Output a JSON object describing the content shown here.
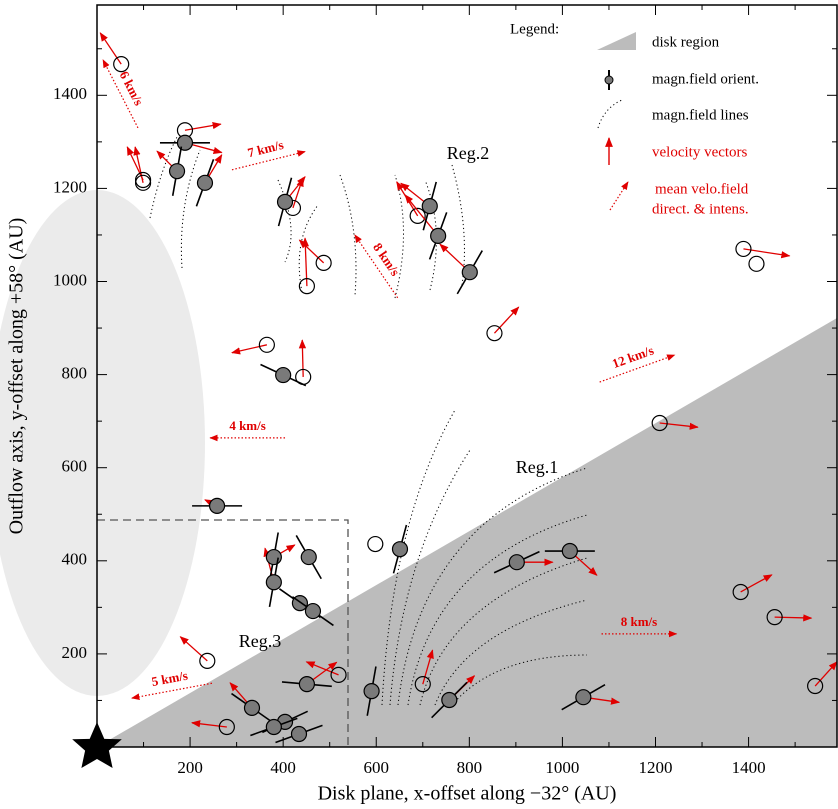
{
  "chart_data": {
    "type": "scatter",
    "xlabel": "Disk plane, x-offset along −32° (AU)",
    "ylabel": "Outflow axis, y-offset along +58° (AU)",
    "xlim": [
      0,
      1590
    ],
    "ylim": [
      0,
      1594
    ],
    "xticks": [
      200,
      400,
      600,
      800,
      1000,
      1200,
      1400
    ],
    "yticks": [
      200,
      400,
      600,
      800,
      1000,
      1200,
      1400
    ],
    "xminor": [
      100,
      300,
      500,
      700,
      900,
      1100,
      1300,
      1500
    ],
    "yminor": [
      100,
      300,
      500,
      700,
      900,
      1100,
      1300,
      1500
    ],
    "vector_color": "#e00000",
    "filled": {
      "x": [
        189,
        172,
        232,
        404,
        715,
        733,
        801,
        400,
        258,
        380,
        455,
        380,
        436,
        464,
        651,
        902,
        1016,
        451,
        333,
        404,
        380,
        434,
        590,
        757,
        1045
      ],
      "y": [
        1298,
        1237,
        1212,
        1171,
        1162,
        1098,
        1020,
        799,
        518,
        408,
        408,
        354,
        309,
        292,
        425,
        397,
        421,
        135,
        84,
        54,
        43,
        28,
        120,
        101,
        107
      ],
      "bfield_angle": [
        0,
        80,
        70,
        75,
        75,
        70,
        60,
        -25,
        0,
        80,
        -60,
        80,
        -35,
        -35,
        75,
        25,
        0,
        -5,
        -35,
        25,
        20,
        20,
        80,
        45,
        30
      ],
      "vx": [
        79,
        -43,
        36,
        43,
        -62,
        -71,
        -64,
        null,
        -26,
        45,
        null,
        -19,
        null,
        null,
        null,
        77,
        58,
        64,
        -47,
        null,
        null,
        null,
        null,
        54,
        77
      ],
      "vy": [
        -21,
        43,
        60,
        54,
        49,
        88,
        60,
        null,
        13,
        26,
        null,
        73,
        null,
        null,
        null,
        0,
        -52,
        47,
        54,
        null,
        null,
        null,
        null,
        52,
        -11
      ]
    },
    "open": {
      "x": [
        52,
        189,
        99,
        99,
        421,
        487,
        451,
        689,
        854,
        365,
        443,
        1389,
        1417,
        1209,
        598,
        237,
        519,
        700,
        279,
        1383,
        1456,
        1543
      ],
      "y": [
        1467,
        1325,
        1218,
        1212,
        1158,
        1040,
        990,
        1141,
        889,
        864,
        795,
        1070,
        1038,
        696,
        436,
        185,
        155,
        135,
        43,
        333,
        279,
        131
      ],
      "vx": [
        -45,
        77,
        -34,
        -17,
        21,
        -52,
        -4,
        -45,
        52,
        -75,
        -2,
        99,
        null,
        82,
        null,
        -58,
        -69,
        21,
        -75,
        67,
        79,
        47
      ],
      "vy": [
        67,
        13,
        71,
        77,
        64,
        49,
        103,
        73,
        56,
        -17,
        79,
        -15,
        null,
        -9,
        null,
        52,
        28,
        73,
        9,
        37,
        -2,
        52
      ]
    },
    "mean_field": {
      "labels": [
        "6 km/s",
        "7 km/s",
        "8 km/s",
        "12 km/s",
        "4 km/s",
        "5 km/s",
        "8 km/s"
      ],
      "x": [
        88,
        290,
        646,
        1080,
        404,
        247,
        1084
      ],
      "y": [
        1330,
        1240,
        965,
        784,
        664,
        137,
        243
      ],
      "vx": [
        -75,
        157,
        -92,
        161,
        -161,
        -172,
        161
      ],
      "vy": [
        146,
        39,
        135,
        58,
        0,
        -32,
        0
      ]
    },
    "regions": [
      "Reg.2",
      "Reg.1",
      "Reg.3"
    ],
    "legend": {
      "title": "Legend:",
      "items": [
        "disk region",
        "magn.field orient.",
        "magn.field lines",
        "velocity vectors",
        "mean velo.field",
        "direct. & intens."
      ]
    }
  }
}
